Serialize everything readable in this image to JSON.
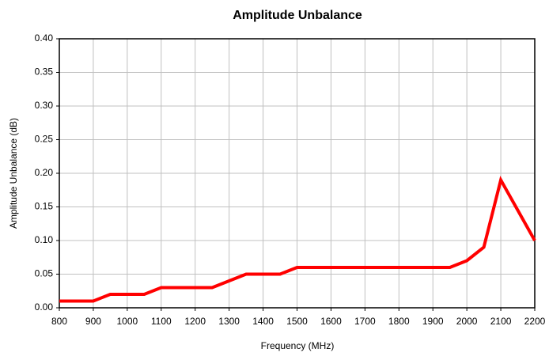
{
  "chart_data": {
    "type": "line",
    "title": "Amplitude Unbalance",
    "xlabel": "Frequency (MHz)",
    "ylabel": "Amplitude Unbalance (dB)",
    "x": [
      800,
      850,
      900,
      950,
      1000,
      1050,
      1100,
      1150,
      1200,
      1250,
      1300,
      1350,
      1400,
      1450,
      1500,
      1550,
      1600,
      1650,
      1700,
      1750,
      1800,
      1850,
      1900,
      1950,
      2000,
      2050,
      2100,
      2150,
      2200
    ],
    "series": [
      {
        "name": "Amplitude Unbalance",
        "color": "#ff0000",
        "values": [
          0.01,
          0.01,
          0.01,
          0.02,
          0.02,
          0.02,
          0.03,
          0.03,
          0.03,
          0.03,
          0.04,
          0.05,
          0.05,
          0.05,
          0.06,
          0.06,
          0.06,
          0.06,
          0.06,
          0.06,
          0.06,
          0.06,
          0.06,
          0.06,
          0.07,
          0.09,
          0.19,
          0.145,
          0.1
        ]
      }
    ],
    "xlim": [
      800,
      2200
    ],
    "xticks": [
      800,
      900,
      1000,
      1100,
      1200,
      1300,
      1400,
      1500,
      1600,
      1700,
      1800,
      1900,
      2000,
      2100,
      2200
    ],
    "ylim": [
      0,
      0.4
    ],
    "yticks": [
      {
        "value": 0,
        "label": "0.00"
      },
      {
        "value": 0.05,
        "label": "0.05"
      },
      {
        "value": 0.1,
        "label": "0.10"
      },
      {
        "value": 0.15,
        "label": "0.15"
      },
      {
        "value": 0.2,
        "label": "0.20"
      },
      {
        "value": 0.25,
        "label": "0.25"
      },
      {
        "value": 0.3,
        "label": "0.30"
      },
      {
        "value": 0.35,
        "label": "0.35"
      },
      {
        "value": 0.4,
        "label": "0.40"
      }
    ],
    "grid": true
  }
}
